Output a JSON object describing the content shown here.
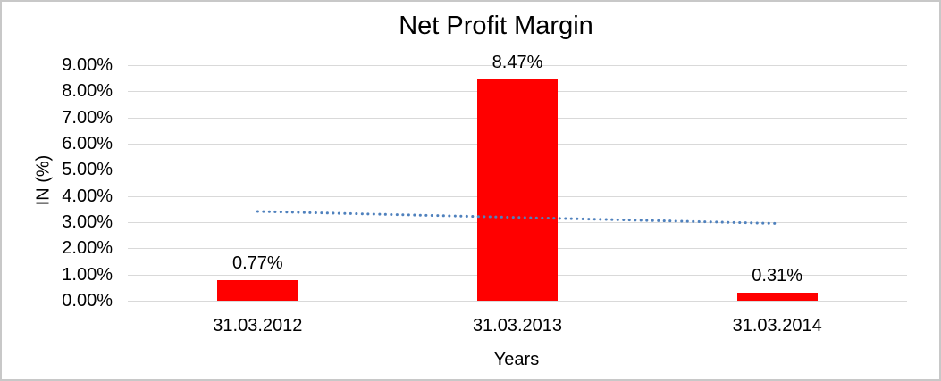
{
  "chart_data": {
    "type": "bar",
    "title": "Net Profit Margin",
    "xlabel": "Years",
    "ylabel": "IN (%)",
    "categories": [
      "31.03.2012",
      "31.03.2013",
      "31.03.2014"
    ],
    "series": [
      {
        "name": "Net Profit Margin",
        "values": [
          0.77,
          8.47,
          0.31
        ],
        "data_labels": [
          "0.77%",
          "8.47%",
          "0.31%"
        ],
        "color": "#ff0000"
      }
    ],
    "trendline": {
      "type": "linear",
      "style": "dotted",
      "color": "#4f81bd",
      "start_value": 3.41,
      "end_value": 2.95
    },
    "y_axis": {
      "min": 0,
      "max": 9,
      "step": 1,
      "tick_labels": [
        "0.00%",
        "1.00%",
        "2.00%",
        "3.00%",
        "4.00%",
        "5.00%",
        "6.00%",
        "7.00%",
        "8.00%",
        "9.00%"
      ],
      "grid": true,
      "gridline_color": "#d9d9d9"
    },
    "legend": "none",
    "frame_border_color": "#c8c8c8",
    "background_color": "#ffffff"
  }
}
